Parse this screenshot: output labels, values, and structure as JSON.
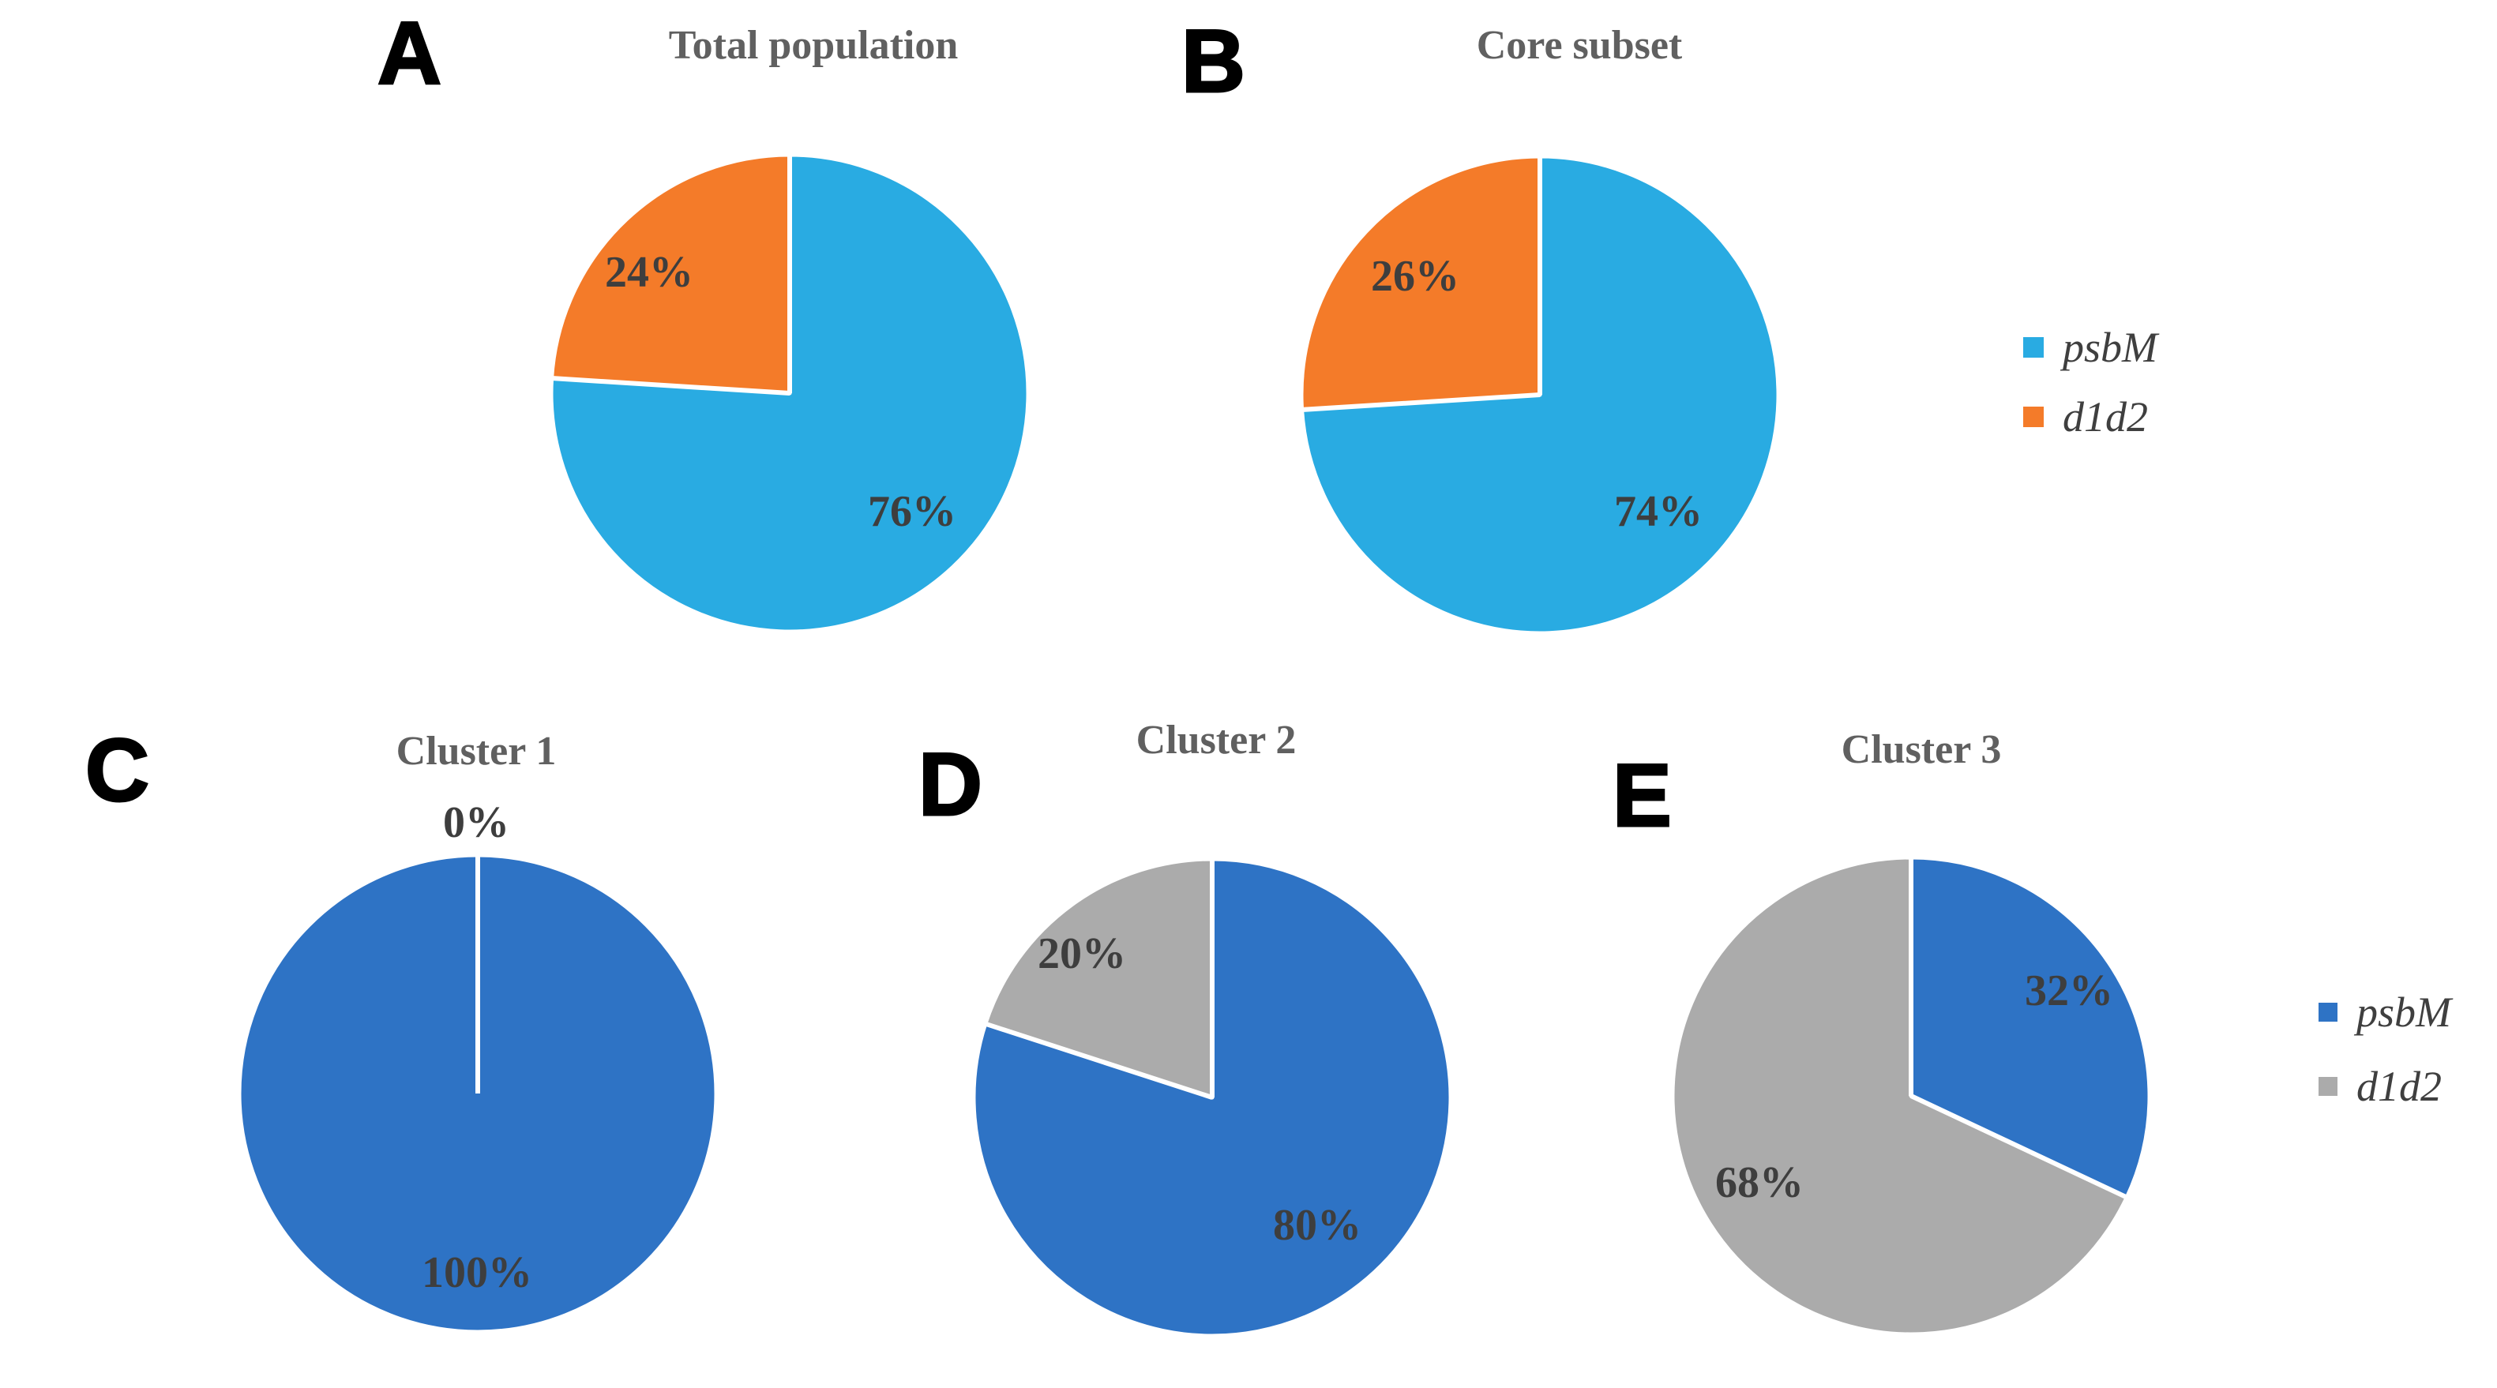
{
  "figure": {
    "background_color": "#ffffff",
    "description": "Five pie charts comparing psbM vs d1d2 proportions"
  },
  "chart_data": [
    {
      "type": "pie",
      "panel_letter": "A",
      "title": "Total population",
      "categories": [
        "psbM",
        "d1d2"
      ],
      "values": [
        76,
        24
      ],
      "value_labels": [
        "76%",
        "24%"
      ],
      "colors": [
        "#29ABE2",
        "#F47B29"
      ],
      "start_angle_deg": -90,
      "direction": "clockwise",
      "slice_border_color": "#ffffff",
      "legend_position": "right"
    },
    {
      "type": "pie",
      "panel_letter": "B",
      "title": "Core subset",
      "categories": [
        "psbM",
        "d1d2"
      ],
      "values": [
        74,
        26
      ],
      "value_labels": [
        "74%",
        "26%"
      ],
      "colors": [
        "#29ABE2",
        "#F47B29"
      ],
      "start_angle_deg": -90,
      "direction": "clockwise",
      "slice_border_color": "#ffffff",
      "legend_position": "right"
    },
    {
      "type": "pie",
      "panel_letter": "C",
      "title": "Cluster 1",
      "categories": [
        "psbM",
        "d1d2"
      ],
      "values": [
        100,
        0
      ],
      "value_labels": [
        "100%",
        "0%"
      ],
      "colors": [
        "#2E73C5",
        "#ABABAB"
      ],
      "start_angle_deg": -90,
      "direction": "clockwise",
      "slice_border_color": "#ffffff",
      "legend_position": "right"
    },
    {
      "type": "pie",
      "panel_letter": "D",
      "title": "Cluster 2",
      "categories": [
        "psbM",
        "d1d2"
      ],
      "values": [
        80,
        20
      ],
      "value_labels": [
        "80%",
        "20%"
      ],
      "colors": [
        "#2E73C5",
        "#ABABAB"
      ],
      "start_angle_deg": -90,
      "direction": "clockwise",
      "slice_border_color": "#ffffff",
      "legend_position": "right"
    },
    {
      "type": "pie",
      "panel_letter": "E",
      "title": "Cluster 3",
      "categories": [
        "psbM",
        "d1d2"
      ],
      "values": [
        32,
        68
      ],
      "value_labels": [
        "32%",
        "68%"
      ],
      "colors": [
        "#2E73C5",
        "#ABABAB"
      ],
      "start_angle_deg": -90,
      "direction": "clockwise",
      "slice_border_color": "#ffffff",
      "legend_position": "right"
    }
  ],
  "legend_top": {
    "items": [
      {
        "label": "psbM",
        "color": "#29ABE2"
      },
      {
        "label": "d1d2",
        "color": "#F47B29"
      }
    ]
  },
  "legend_bottom": {
    "items": [
      {
        "label": "psbM",
        "color": "#2E73C5"
      },
      {
        "label": "d1d2",
        "color": "#ABABAB"
      }
    ]
  }
}
